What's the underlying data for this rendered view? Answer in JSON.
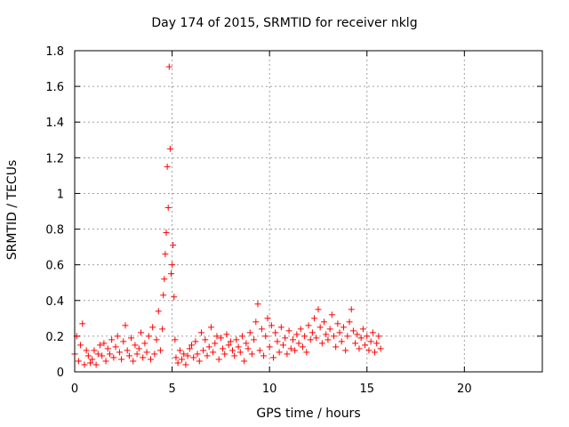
{
  "chart_data": {
    "type": "scatter",
    "title": "Day 174 of 2015, SRMTID for receiver nklg",
    "xlabel": "GPS time / hours",
    "ylabel": "SRMTID / TECUs",
    "xlim": [
      0,
      24
    ],
    "ylim": [
      0,
      1.8
    ],
    "xticks": [
      "0",
      "5",
      "10",
      "15",
      "20"
    ],
    "yticks": [
      "0",
      "0.2",
      "0.4",
      "0.6",
      "0.8",
      "1",
      "1.2",
      "1.4",
      "1.6",
      "1.8"
    ],
    "grid": true,
    "marker": "+",
    "color": "#ff0000",
    "series": [
      {
        "name": "SRMTID",
        "x": [
          0.0,
          0.1,
          0.2,
          0.3,
          0.4,
          0.5,
          0.6,
          0.7,
          0.8,
          0.9,
          1.0,
          1.1,
          1.2,
          1.3,
          1.4,
          1.5,
          1.6,
          1.7,
          1.8,
          1.9,
          2.0,
          2.1,
          2.2,
          2.3,
          2.4,
          2.5,
          2.6,
          2.7,
          2.8,
          2.9,
          3.0,
          3.1,
          3.2,
          3.3,
          3.4,
          3.5,
          3.6,
          3.7,
          3.8,
          3.9,
          4.0,
          4.1,
          4.2,
          4.3,
          4.4,
          4.5,
          4.55,
          4.6,
          4.65,
          4.7,
          4.75,
          4.8,
          4.85,
          4.9,
          4.95,
          5.0,
          5.05,
          5.1,
          5.15,
          5.2,
          5.3,
          5.4,
          5.5,
          5.6,
          5.7,
          5.8,
          5.9,
          6.0,
          6.1,
          6.2,
          6.3,
          6.4,
          6.5,
          6.6,
          6.7,
          6.8,
          6.9,
          7.0,
          7.1,
          7.2,
          7.3,
          7.4,
          7.5,
          7.6,
          7.7,
          7.8,
          7.9,
          8.0,
          8.1,
          8.2,
          8.3,
          8.4,
          8.5,
          8.6,
          8.7,
          8.8,
          8.9,
          9.0,
          9.1,
          9.2,
          9.3,
          9.4,
          9.5,
          9.6,
          9.7,
          9.8,
          9.9,
          10.0,
          10.1,
          10.2,
          10.3,
          10.4,
          10.5,
          10.6,
          10.7,
          10.8,
          10.9,
          11.0,
          11.1,
          11.2,
          11.3,
          11.4,
          11.5,
          11.6,
          11.7,
          11.8,
          11.9,
          12.0,
          12.1,
          12.2,
          12.3,
          12.4,
          12.5,
          12.6,
          12.7,
          12.8,
          12.9,
          13.0,
          13.1,
          13.2,
          13.3,
          13.4,
          13.5,
          13.6,
          13.7,
          13.8,
          13.9,
          14.0,
          14.1,
          14.2,
          14.3,
          14.4,
          14.5,
          14.6,
          14.7,
          14.8,
          14.9,
          15.0,
          15.1,
          15.2,
          15.3,
          15.4,
          15.5,
          15.6,
          15.7
        ],
        "y": [
          0.1,
          0.2,
          0.06,
          0.15,
          0.27,
          0.04,
          0.12,
          0.09,
          0.05,
          0.07,
          0.12,
          0.04,
          0.1,
          0.15,
          0.09,
          0.16,
          0.06,
          0.13,
          0.1,
          0.18,
          0.08,
          0.14,
          0.2,
          0.11,
          0.07,
          0.17,
          0.26,
          0.12,
          0.09,
          0.19,
          0.06,
          0.15,
          0.1,
          0.13,
          0.22,
          0.08,
          0.16,
          0.11,
          0.2,
          0.07,
          0.25,
          0.1,
          0.18,
          0.34,
          0.12,
          0.24,
          0.43,
          0.52,
          0.66,
          0.78,
          1.15,
          0.92,
          1.71,
          1.25,
          0.55,
          0.6,
          0.71,
          0.42,
          0.18,
          0.08,
          0.05,
          0.12,
          0.07,
          0.1,
          0.04,
          0.09,
          0.13,
          0.15,
          0.08,
          0.17,
          0.1,
          0.06,
          0.22,
          0.12,
          0.18,
          0.09,
          0.14,
          0.25,
          0.11,
          0.16,
          0.2,
          0.07,
          0.19,
          0.13,
          0.1,
          0.21,
          0.15,
          0.17,
          0.12,
          0.09,
          0.18,
          0.14,
          0.11,
          0.2,
          0.06,
          0.16,
          0.13,
          0.22,
          0.1,
          0.18,
          0.28,
          0.38,
          0.12,
          0.24,
          0.09,
          0.2,
          0.3,
          0.14,
          0.26,
          0.08,
          0.22,
          0.17,
          0.11,
          0.25,
          0.15,
          0.19,
          0.1,
          0.23,
          0.13,
          0.18,
          0.12,
          0.21,
          0.16,
          0.24,
          0.14,
          0.2,
          0.11,
          0.26,
          0.18,
          0.22,
          0.3,
          0.19,
          0.35,
          0.25,
          0.16,
          0.28,
          0.21,
          0.18,
          0.24,
          0.32,
          0.2,
          0.14,
          0.27,
          0.22,
          0.17,
          0.25,
          0.12,
          0.2,
          0.28,
          0.35,
          0.23,
          0.16,
          0.21,
          0.13,
          0.19,
          0.24,
          0.15,
          0.2,
          0.12,
          0.17,
          0.22,
          0.11,
          0.16,
          0.2,
          0.13
        ]
      }
    ]
  }
}
